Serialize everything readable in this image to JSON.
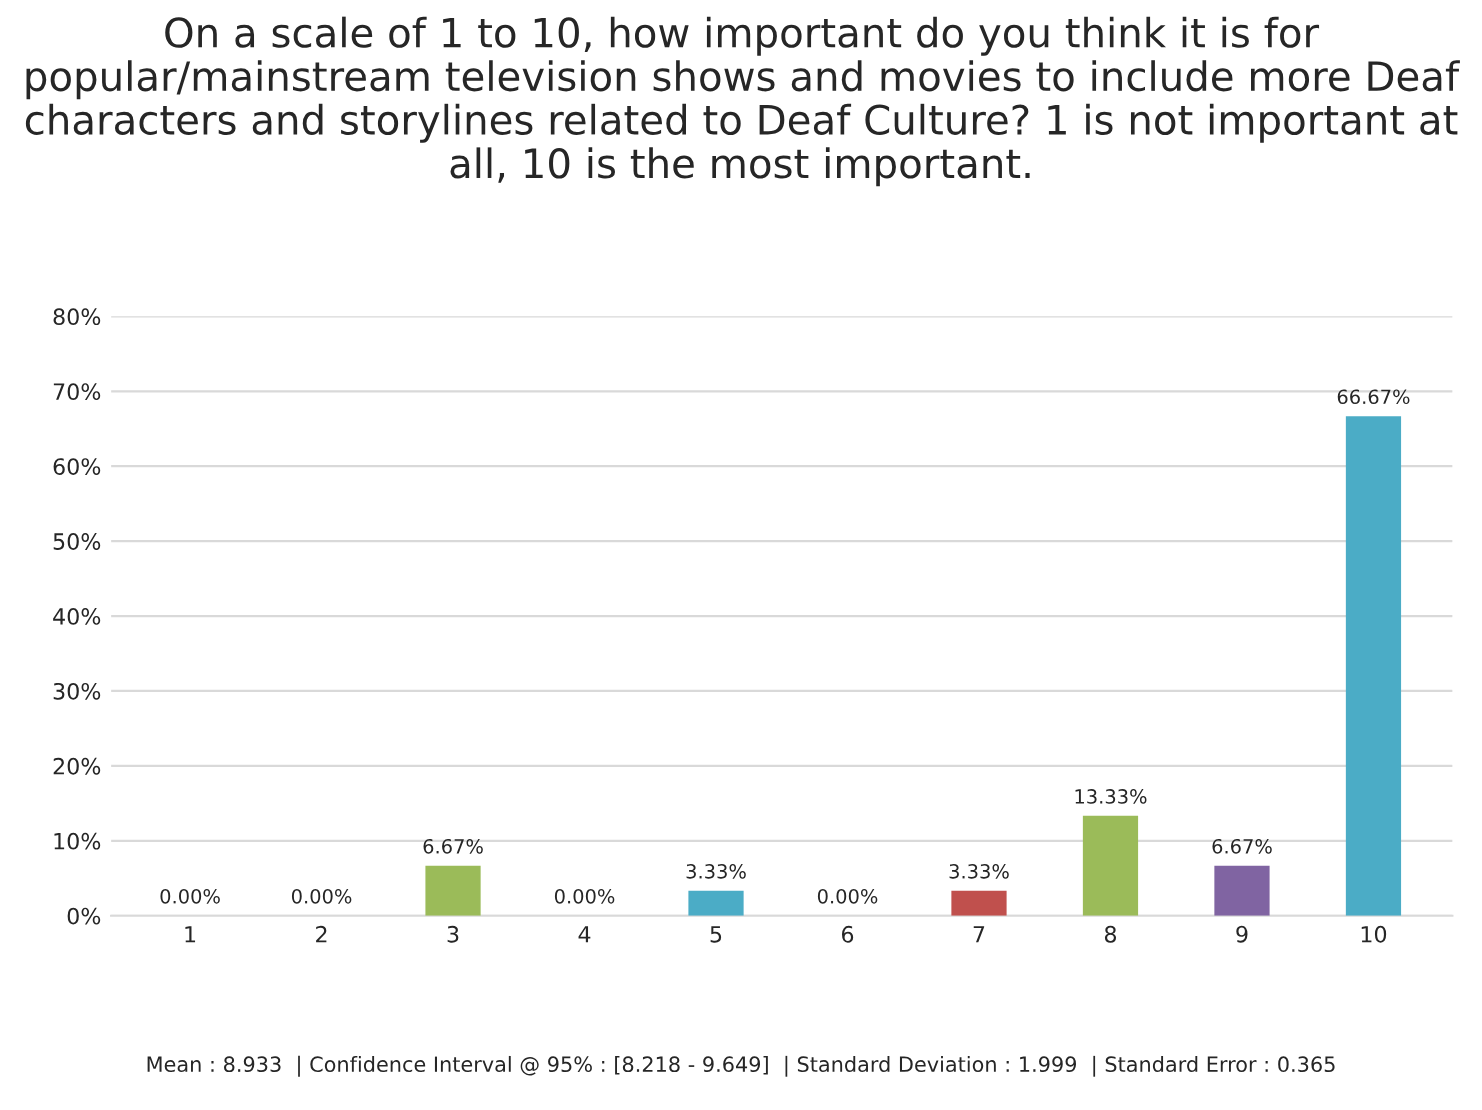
{
  "chart_data": {
    "type": "bar",
    "title": "On a scale of 1 to 10, how important do you think it is for popular/mainstream television shows and movies to include more Deaf characters and storylines related to Deaf Culture? 1 is not important at all, 10 is the most important.",
    "categories": [
      "1",
      "2",
      "3",
      "4",
      "5",
      "6",
      "7",
      "8",
      "9",
      "10"
    ],
    "values": [
      0,
      0,
      6.67,
      0,
      3.33,
      0,
      3.33,
      13.33,
      6.67,
      66.67
    ],
    "value_labels": [
      "0.00%",
      "0.00%",
      "6.67%",
      "0.00%",
      "3.33%",
      "0.00%",
      "3.33%",
      "13.33%",
      "6.67%",
      "66.67%"
    ],
    "colors": [
      null,
      null,
      "#9bbb59",
      null,
      "#4bacc6",
      null,
      "#c0504d",
      "#9bbb59",
      "#8064a2",
      "#4bacc6"
    ],
    "ylim": [
      0,
      80
    ],
    "yticks": [
      {
        "value": 0,
        "label": "0%"
      },
      {
        "value": 10,
        "label": "10%"
      },
      {
        "value": 20,
        "label": "20%"
      },
      {
        "value": 30,
        "label": "30%"
      },
      {
        "value": 40,
        "label": "40%"
      },
      {
        "value": 50,
        "label": "50%"
      },
      {
        "value": 60,
        "label": "60%"
      },
      {
        "value": 70,
        "label": "70%"
      },
      {
        "value": 80,
        "label": "80%"
      }
    ],
    "grid": "y",
    "annotations": [
      "Mean : 8.933  | Confidence Interval @ 95% : [8.218 - 9.649]  | Standard Deviation : 1.999  | Standard Error : 0.365"
    ]
  }
}
